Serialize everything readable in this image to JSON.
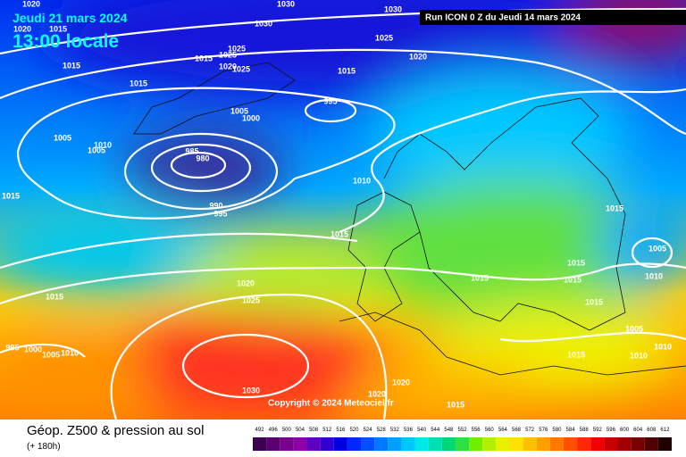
{
  "header": {
    "date": "Jeudi 21 mars 2024",
    "time": "13:00 locale",
    "run": "Run ICON 0 Z du Jeudi 14 mars 2024"
  },
  "footer": {
    "title": "Géop. Z500 & pression au sol",
    "subtitle": "(+ 180h)",
    "copyright": "Copyright © 2024 Meteociel.fr"
  },
  "scale": {
    "labels": [
      492,
      496,
      500,
      504,
      508,
      512,
      516,
      520,
      524,
      528,
      532,
      536,
      540,
      544,
      548,
      552,
      556,
      560,
      564,
      568,
      572,
      576,
      580,
      584,
      588,
      592,
      596,
      600,
      604,
      608,
      612
    ],
    "colors": [
      "#3d0050",
      "#5a0070",
      "#7a008f",
      "#9000a8",
      "#6000c0",
      "#3000d0",
      "#0000e0",
      "#0028ff",
      "#0050ff",
      "#0078ff",
      "#00a0ff",
      "#00c8ff",
      "#00e8e8",
      "#00e0b0",
      "#00d878",
      "#30e040",
      "#70f000",
      "#b0f000",
      "#e8f000",
      "#ffe000",
      "#ffc000",
      "#ffa000",
      "#ff7800",
      "#ff5000",
      "#ff2800",
      "#f00000",
      "#c80000",
      "#a00000",
      "#780000",
      "#500000",
      "#200000"
    ]
  },
  "isobars": {
    "labels": [
      1020,
      1020,
      1015,
      1030,
      1030,
      1030,
      1025,
      1020,
      1015,
      1015,
      1025,
      1025,
      1020,
      1025,
      1015,
      1015,
      995,
      1005,
      1000,
      1005,
      1010,
      1005,
      985,
      980,
      1010,
      1015,
      990,
      995,
      1015,
      1015,
      1005,
      1015,
      1015,
      1015,
      1010,
      1020,
      1015,
      1025,
      1015,
      1005,
      995,
      1000,
      1005,
      1010,
      1015,
      1010,
      1010,
      1030,
      1020,
      1020,
      1015
    ]
  }
}
